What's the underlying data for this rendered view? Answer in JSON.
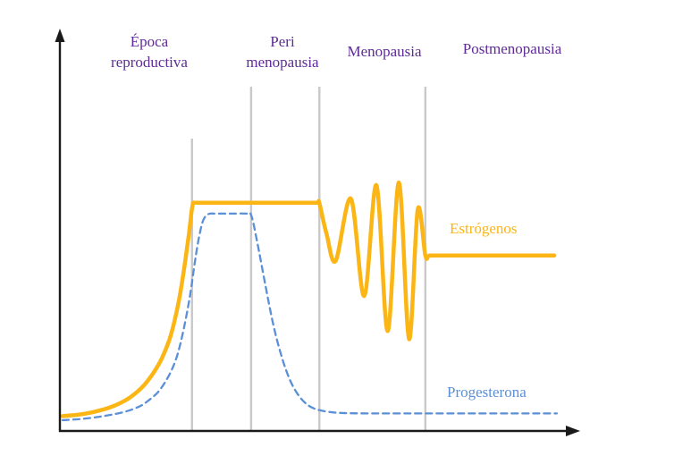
{
  "chart_data": {
    "type": "line",
    "title": "",
    "xlabel": "",
    "ylabel": "",
    "grid": false,
    "legend_position": "inline-right",
    "x_range": [
      0,
      100
    ],
    "y_range": [
      0,
      100
    ],
    "phases": [
      {
        "label": "Época\nreproductiva",
        "x_start": 0,
        "x_end": 25.4
      },
      {
        "label": "Peri\nmenopausia",
        "x_start": 37,
        "x_end": 50.4
      },
      {
        "label": "Menopausia",
        "x_start": 50.4,
        "x_end": 71.2
      },
      {
        "label": "Postmenopausia",
        "x_start": 71.2,
        "x_end": 100
      }
    ],
    "phase_dividers_x": [
      25.4,
      37,
      50.4,
      71.2
    ],
    "series": [
      {
        "name": "Estrógenos",
        "color": "#fbb615",
        "style": "solid",
        "points": [
          [
            0,
            5.5
          ],
          [
            3,
            6
          ],
          [
            6,
            7
          ],
          [
            9,
            8.5
          ],
          [
            12,
            11
          ],
          [
            14,
            13.5
          ],
          [
            16,
            17
          ],
          [
            18,
            22
          ],
          [
            19.5,
            27
          ],
          [
            21,
            34
          ],
          [
            22,
            41
          ],
          [
            23,
            50
          ],
          [
            24,
            62
          ],
          [
            24.8,
            73
          ],
          [
            25.3,
            81
          ],
          [
            25.6,
            84.3
          ],
          [
            25.9,
            84.5
          ],
          [
            26.5,
            84.5
          ],
          [
            29,
            84.5
          ],
          [
            33,
            84.5
          ],
          [
            38,
            84.5
          ],
          [
            43,
            84.5
          ],
          [
            47,
            84.5
          ],
          [
            50,
            84.5
          ],
          [
            50.4,
            84.3
          ],
          [
            51.8,
            73
          ],
          [
            53.6,
            63
          ],
          [
            56.6,
            86
          ],
          [
            59.2,
            50
          ],
          [
            61.6,
            91
          ],
          [
            63.8,
            37
          ],
          [
            66,
            92
          ],
          [
            68,
            34
          ],
          [
            69.7,
            82
          ],
          [
            71.2,
            65
          ],
          [
            72,
            65
          ],
          [
            74,
            65
          ],
          [
            80,
            65
          ],
          [
            88,
            65
          ],
          [
            96.5,
            65
          ]
        ]
      },
      {
        "name": "Progesterona",
        "color": "#5b8fd6",
        "style": "dashed",
        "points": [
          [
            0,
            4
          ],
          [
            4,
            4.5
          ],
          [
            8,
            5.5
          ],
          [
            12,
            7
          ],
          [
            15,
            9
          ],
          [
            17,
            11.5
          ],
          [
            19,
            15
          ],
          [
            21,
            21
          ],
          [
            22.5,
            28
          ],
          [
            23.8,
            38
          ],
          [
            25,
            50
          ],
          [
            26,
            63
          ],
          [
            26.8,
            72
          ],
          [
            27.6,
            78
          ],
          [
            28.6,
            80.3
          ],
          [
            30,
            80.5
          ],
          [
            33,
            80.5
          ],
          [
            36,
            80.5
          ],
          [
            37,
            80
          ],
          [
            38.2,
            70
          ],
          [
            39.8,
            54
          ],
          [
            41.4,
            39
          ],
          [
            43,
            27.5
          ],
          [
            44.6,
            19
          ],
          [
            46.2,
            13.5
          ],
          [
            48,
            9.8
          ],
          [
            50,
            7.9
          ],
          [
            53,
            6.9
          ],
          [
            56,
            6.6
          ],
          [
            60,
            6.5
          ],
          [
            68,
            6.5
          ],
          [
            78,
            6.5
          ],
          [
            88,
            6.5
          ],
          [
            97,
            6.5
          ]
        ]
      }
    ]
  },
  "colors": {
    "phase-text": "#5e2b97",
    "estrogen": "#fbb615",
    "progesterone": "#5b8fd6",
    "divider": "#c9c9c9",
    "axis": "#1a1a1a"
  }
}
